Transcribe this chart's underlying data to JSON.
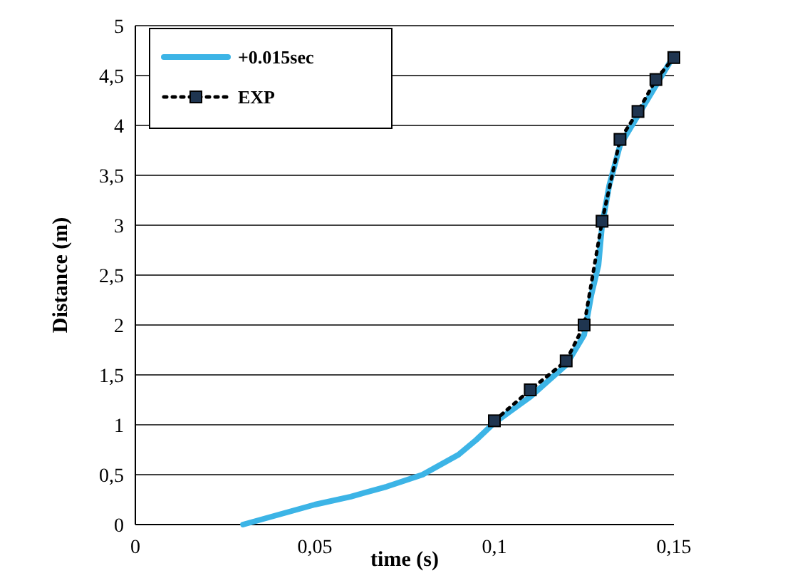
{
  "chart_data": {
    "type": "line",
    "xlabel": "time (s)",
    "ylabel": "Distance (m)",
    "xlim": [
      0,
      0.15
    ],
    "xticks": [
      0,
      {
        "value": 0.05,
        "label": "0,05"
      },
      {
        "value": 0.1,
        "label": "0,1"
      },
      {
        "value": 0.15,
        "label": "0,15"
      }
    ],
    "ylim": [
      0,
      5
    ],
    "yticks": [
      0,
      {
        "value": 0.5,
        "label": "0,5"
      },
      1,
      {
        "value": 1.5,
        "label": "1,5"
      },
      2,
      {
        "value": 2.5,
        "label": "2,5"
      },
      3,
      {
        "value": 3.5,
        "label": "3,5"
      },
      4,
      {
        "value": 4.5,
        "label": "4,5"
      },
      5
    ],
    "grid": "y",
    "legend": "top left",
    "series": [
      {
        "name": "+0.015sec",
        "color": "#3cb4e6",
        "marker": "none",
        "line_style": "solid",
        "x": [
          0.03,
          0.04,
          0.05,
          0.06,
          0.07,
          0.08,
          0.09,
          0.095,
          0.1,
          0.11,
          0.12,
          0.125,
          0.127,
          0.129,
          0.13,
          0.132,
          0.135,
          0.14,
          0.145,
          0.15
        ],
        "values": [
          0,
          0.1,
          0.2,
          0.28,
          0.38,
          0.5,
          0.7,
          0.85,
          1.02,
          1.28,
          1.6,
          1.9,
          2.3,
          2.6,
          3.0,
          3.4,
          3.8,
          4.1,
          4.4,
          4.7
        ]
      },
      {
        "name": "EXP",
        "color": "#000000",
        "marker": "square",
        "line_style": "dotted",
        "x": [
          0.1,
          0.11,
          0.12,
          0.125,
          0.13,
          0.135,
          0.14,
          0.145,
          0.15
        ],
        "values": [
          1.04,
          1.35,
          1.64,
          2.0,
          3.04,
          3.86,
          4.14,
          4.46,
          4.68
        ]
      }
    ]
  }
}
